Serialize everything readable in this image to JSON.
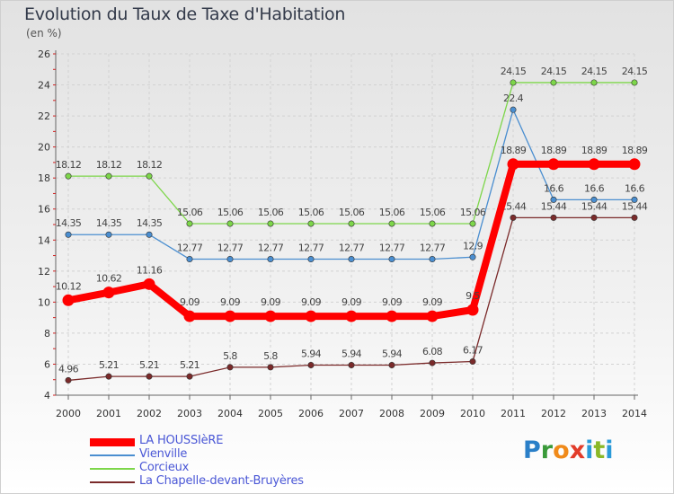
{
  "header": {
    "title": "Evolution du Taux de Taxe d'Habitation",
    "subtitle": "(en %)"
  },
  "logo": {
    "letters": [
      "P",
      "r",
      "o",
      "x",
      "i",
      "t",
      "i"
    ]
  },
  "chart_data": {
    "type": "line",
    "title": "Evolution du Taux de Taxe d'Habitation",
    "ylabel": "(en %)",
    "xlabel": "",
    "ylim": [
      4,
      26
    ],
    "yticks": [
      "4",
      "6",
      "8",
      "10",
      "12",
      "14",
      "16",
      "18",
      "20",
      "22",
      "24",
      "26"
    ],
    "categories": [
      "2000",
      "2001",
      "2002",
      "2003",
      "2004",
      "2005",
      "2006",
      "2007",
      "2008",
      "2009",
      "2010",
      "2011",
      "2012",
      "2013",
      "2014"
    ],
    "grid": true,
    "legend_position": "bottom-left",
    "series": [
      {
        "name": "LA HOUSSIèRE",
        "color": "#ff0000",
        "values": [
          10.12,
          10.62,
          11.16,
          9.09,
          9.09,
          9.09,
          9.09,
          9.09,
          9.09,
          9.09,
          9.5,
          18.89,
          18.89,
          18.89,
          18.89
        ],
        "labels": [
          "10.12",
          "10.62",
          "11.16",
          "9.09",
          "9.09",
          "9.09",
          "9.09",
          "9.09",
          "9.09",
          "9.09",
          "9.5",
          "18.89",
          "18.89",
          "18.89",
          "18.89"
        ]
      },
      {
        "name": "Vienville",
        "color": "#4a8ed0",
        "values": [
          14.35,
          14.35,
          14.35,
          12.77,
          12.77,
          12.77,
          12.77,
          12.77,
          12.77,
          12.77,
          12.9,
          22.4,
          16.6,
          16.6,
          16.6
        ],
        "labels": [
          "14.35",
          "14.35",
          "14.35",
          "12.77",
          "12.77",
          "12.77",
          "12.77",
          "12.77",
          "12.77",
          "12.77",
          "12.9",
          "22.4",
          "16.6",
          "16.6",
          "16.6"
        ]
      },
      {
        "name": "Corcieux",
        "color": "#7dd64a",
        "values": [
          18.12,
          18.12,
          18.12,
          15.06,
          15.06,
          15.06,
          15.06,
          15.06,
          15.06,
          15.06,
          15.06,
          24.15,
          24.15,
          24.15,
          24.15
        ],
        "labels": [
          "18.12",
          "18.12",
          "18.12",
          "15.06",
          "15.06",
          "15.06",
          "15.06",
          "15.06",
          "15.06",
          "15.06",
          "15.06",
          "24.15",
          "24.15",
          "24.15",
          "24.15"
        ]
      },
      {
        "name": "La Chapelle-devant-Bruyères",
        "color": "#7a2a2a",
        "values": [
          4.96,
          5.21,
          5.21,
          5.21,
          5.8,
          5.8,
          5.94,
          5.94,
          5.94,
          6.08,
          6.17,
          15.44,
          15.44,
          15.44,
          15.44
        ],
        "labels": [
          "4.96",
          "5.21",
          "5.21",
          "5.21",
          "5.8",
          "5.8",
          "5.94",
          "5.94",
          "5.94",
          "6.08",
          "6.17",
          "15.44",
          "15.44",
          "15.44",
          "15.44"
        ]
      }
    ]
  }
}
